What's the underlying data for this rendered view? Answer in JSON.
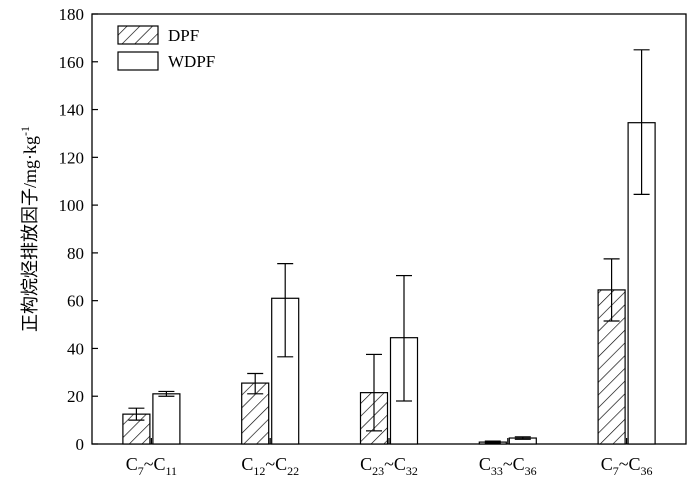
{
  "chart_data": {
    "type": "bar",
    "title": "",
    "xlabel": "",
    "ylabel": "正构烷烃排放因子/mg·kg",
    "ylabel_superscript": "-1",
    "ylim": [
      0,
      180
    ],
    "yticks": [
      0,
      20,
      40,
      60,
      80,
      100,
      120,
      140,
      160,
      180
    ],
    "grid": false,
    "legend_position": "top-left",
    "categories": [
      {
        "base": "C",
        "sub1": "7",
        "sep": "~C",
        "sub2": "11"
      },
      {
        "base": "C",
        "sub1": "12",
        "sep": "~C",
        "sub2": "22"
      },
      {
        "base": "C",
        "sub1": "23",
        "sep": "~C",
        "sub2": "32"
      },
      {
        "base": "C",
        "sub1": "33",
        "sep": "~C",
        "sub2": "36"
      },
      {
        "base": "C",
        "sub1": "7",
        "sep": "~C",
        "sub2": "36"
      }
    ],
    "series": [
      {
        "name": "DPF",
        "pattern": "hatched",
        "values": [
          12.5,
          25.5,
          21.5,
          0.8,
          64.5
        ],
        "error_low": [
          10.0,
          21.0,
          5.5,
          0.4,
          51.5
        ],
        "error_high": [
          15.0,
          29.5,
          37.5,
          1.2,
          77.5
        ]
      },
      {
        "name": "WDPF",
        "pattern": "open",
        "values": [
          21.0,
          61.0,
          44.5,
          2.5,
          134.5
        ],
        "error_low": [
          20.0,
          36.5,
          18.0,
          2.0,
          104.5
        ],
        "error_high": [
          22.0,
          75.5,
          70.5,
          3.0,
          165.0
        ]
      }
    ]
  }
}
